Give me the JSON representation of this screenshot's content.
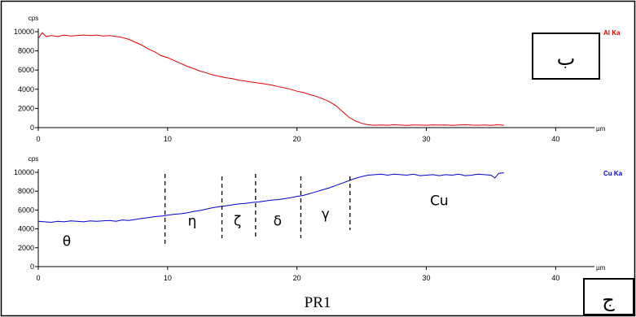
{
  "caption": "PR1",
  "chart_data": [
    {
      "type": "line",
      "yunit": "cps",
      "xunit": "µm",
      "xlim": [
        0,
        43
      ],
      "ylim": [
        0,
        10000
      ],
      "xticks": [
        0,
        10,
        20,
        30,
        40
      ],
      "yticks": [
        0,
        2000,
        4000,
        6000,
        8000,
        10000
      ],
      "panel_label": "ب",
      "series": [
        {
          "name": "Al Ka",
          "color": "#e00000",
          "x": [
            0,
            0.3,
            0.6,
            1,
            1.5,
            2,
            2.5,
            3,
            3.5,
            4,
            4.5,
            5,
            5.5,
            6,
            6.5,
            7,
            7.5,
            8,
            8.5,
            9,
            9.5,
            10,
            10.5,
            11,
            11.5,
            12,
            12.5,
            13,
            13.5,
            14,
            14.5,
            15,
            15.5,
            16,
            16.5,
            17,
            17.5,
            18,
            18.5,
            19,
            19.5,
            20,
            20.5,
            21,
            21.5,
            22,
            22.5,
            23,
            23.5,
            24,
            24.5,
            25,
            25.5,
            26,
            26.5,
            27,
            27.5,
            28,
            28.5,
            29,
            29.5,
            30,
            30.5,
            31,
            31.5,
            32,
            32.5,
            33,
            33.5,
            34,
            34.5,
            35,
            35.5,
            36
          ],
          "y": [
            9300,
            9900,
            9500,
            9600,
            9500,
            9650,
            9550,
            9600,
            9650,
            9600,
            9650,
            9550,
            9600,
            9500,
            9400,
            9200,
            8900,
            8600,
            8200,
            7900,
            7500,
            7300,
            7000,
            6700,
            6400,
            6150,
            5900,
            5700,
            5500,
            5350,
            5200,
            5100,
            4950,
            4850,
            4750,
            4650,
            4550,
            4450,
            4300,
            4150,
            4000,
            3800,
            3650,
            3450,
            3250,
            3000,
            2700,
            2300,
            1700,
            1100,
            700,
            450,
            300,
            250,
            280,
            250,
            300,
            260,
            240,
            280,
            260,
            250,
            290,
            260,
            280,
            240,
            270,
            300,
            260,
            250,
            280,
            240,
            300,
            250
          ]
        }
      ]
    },
    {
      "type": "line",
      "yunit": "cps",
      "xunit": "µm",
      "xlim": [
        0,
        43
      ],
      "ylim": [
        0,
        10000
      ],
      "xticks": [
        0,
        10,
        20,
        30,
        40
      ],
      "yticks": [
        0,
        2000,
        4000,
        6000,
        8000,
        10000
      ],
      "panel_label": "ج",
      "series": [
        {
          "name": "Cu Ka",
          "color": "#0000cc",
          "x": [
            0,
            0.5,
            1,
            1.5,
            2,
            2.5,
            3,
            3.5,
            4,
            4.5,
            5,
            5.5,
            6,
            6.5,
            7,
            7.5,
            8,
            8.5,
            9,
            9.5,
            10,
            10.5,
            11,
            11.5,
            12,
            12.5,
            13,
            13.5,
            14,
            14.5,
            15,
            15.5,
            16,
            16.5,
            17,
            17.5,
            18,
            18.5,
            19,
            19.5,
            20,
            20.5,
            21,
            21.5,
            22,
            22.5,
            23,
            23.5,
            24,
            24.5,
            25,
            25.5,
            26,
            26.5,
            27,
            27.5,
            28,
            28.5,
            29,
            29.5,
            30,
            30.5,
            31,
            31.5,
            32,
            32.5,
            33,
            33.5,
            34,
            34.5,
            35,
            35.3,
            35.6,
            36
          ],
          "y": [
            4800,
            4750,
            4700,
            4800,
            4750,
            4850,
            4800,
            4750,
            4850,
            4800,
            4850,
            4900,
            4800,
            4950,
            4900,
            5000,
            5100,
            5200,
            5300,
            5350,
            5450,
            5550,
            5600,
            5700,
            5850,
            5950,
            6100,
            6250,
            6350,
            6450,
            6550,
            6650,
            6700,
            6800,
            6850,
            6950,
            7050,
            7100,
            7200,
            7300,
            7450,
            7550,
            7750,
            7950,
            8150,
            8350,
            8600,
            8850,
            9100,
            9350,
            9550,
            9700,
            9750,
            9800,
            9700,
            9800,
            9750,
            9700,
            9800,
            9650,
            9700,
            9750,
            9650,
            9750,
            9700,
            9800,
            9650,
            9700,
            9800,
            9750,
            9700,
            9400,
            9900,
            9950
          ]
        }
      ],
      "phase_boundaries": [
        9.8,
        14.2,
        16.8,
        20.3,
        24.1
      ],
      "phases": [
        {
          "label": "θ",
          "x": 2.2,
          "y": 2200
        },
        {
          "label": "η",
          "x": 11.9,
          "y": 4350
        },
        {
          "label": "ζ",
          "x": 15.4,
          "y": 4350
        },
        {
          "label": "δ",
          "x": 18.5,
          "y": 4350
        },
        {
          "label": "γ",
          "x": 22.2,
          "y": 5100
        },
        {
          "label": "Cu",
          "x": 31.0,
          "y": 6500
        }
      ]
    }
  ]
}
